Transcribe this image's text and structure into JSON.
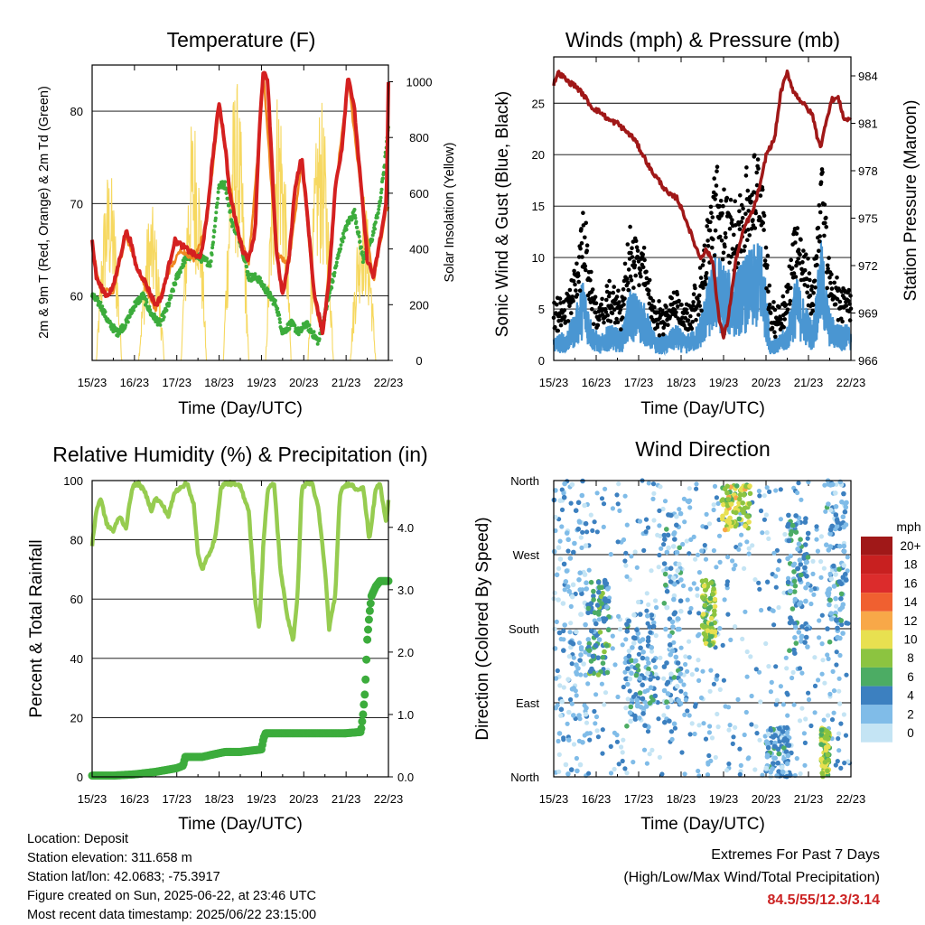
{
  "info": {
    "location": "Location: Deposit",
    "elevation": "Station elevation: 311.658 m",
    "latlon": "Station lat/lon: 42.0683; -75.3917",
    "created": "Figure created on Sun, 2025-06-22, at 23:46 UTC",
    "latest": "Most recent data timestamp: 2025/06/22 23:15:00"
  },
  "extremes": {
    "title": "Extremes For Past 7 Days",
    "subtitle": "(High/Low/Max Wind/Total Precipitation)",
    "values": "84.5/55/12.3/3.14",
    "color": "#cc2222"
  },
  "chart_data": [
    {
      "type": "line",
      "title": "Temperature (F)",
      "xlabel": "Time (Day/UTC)",
      "ylabel": "2m & 9m T (Red, Orange) & 2m Td (Green)",
      "y2label": "Solar Insolation (Yellow)",
      "x_ticks": [
        "15/23",
        "16/23",
        "17/23",
        "18/23",
        "19/23",
        "20/23",
        "21/23",
        "22/23"
      ],
      "xlim": [
        0,
        7
      ],
      "ylim": [
        53,
        85
      ],
      "y_ticks": [
        60,
        70,
        80
      ],
      "y2lim": [
        0,
        1060
      ],
      "y2_ticks": [
        0,
        200,
        400,
        600,
        800,
        1000
      ],
      "grid_y": [
        60,
        70,
        80
      ],
      "series": [
        {
          "name": "2m T",
          "color": "#d42020",
          "x": [
            0,
            0.1,
            0.2,
            0.35,
            0.5,
            0.65,
            0.8,
            0.9,
            1.05,
            1.2,
            1.35,
            1.5,
            1.65,
            1.8,
            1.95,
            2.1,
            2.25,
            2.4,
            2.55,
            2.7,
            2.85,
            3.0,
            3.15,
            3.25,
            3.4,
            3.55,
            3.7,
            3.85,
            3.95,
            4.05,
            4.15,
            4.35,
            4.5,
            4.65,
            4.8,
            4.95,
            5.1,
            5.25,
            5.35,
            5.45,
            5.6,
            5.75,
            5.9,
            6.05,
            6.2,
            6.35,
            6.5,
            6.65,
            6.8,
            6.95,
            7.0
          ],
          "y": [
            66,
            62,
            61,
            60,
            61,
            64,
            67,
            66,
            63,
            62,
            60.5,
            59,
            60,
            63,
            66,
            65.5,
            65,
            64.5,
            64,
            68,
            75,
            81,
            76,
            71,
            68,
            65,
            64,
            67,
            78,
            84.5,
            83,
            65,
            60,
            64,
            72,
            75,
            68,
            60,
            58,
            56,
            62,
            72,
            76,
            84,
            80,
            72,
            64,
            62,
            66,
            70,
            83
          ]
        },
        {
          "name": "9m T",
          "color": "#f08820",
          "x": [
            0,
            0.2,
            0.5,
            0.8,
            1.2,
            1.5,
            1.8,
            2.1,
            2.4,
            2.7,
            3.0,
            3.15,
            3.4,
            3.7,
            3.95,
            4.05,
            4.35,
            4.65,
            4.95,
            5.25,
            5.45,
            5.75,
            6.05,
            6.35,
            6.65,
            6.95
          ],
          "y": [
            65.5,
            60.5,
            60.5,
            66.5,
            61.5,
            58.5,
            62.5,
            65,
            64,
            67.5,
            80.5,
            75.5,
            67.5,
            63.5,
            77.5,
            84,
            64.5,
            63.5,
            74.5,
            59.5,
            55.5,
            71.5,
            83.5,
            71.5,
            61.5,
            69.5
          ]
        },
        {
          "name": "2m Td",
          "color": "#3cac3c",
          "x": [
            0,
            0.2,
            0.4,
            0.6,
            0.8,
            1.0,
            1.2,
            1.4,
            1.6,
            1.8,
            2.0,
            2.2,
            2.4,
            2.6,
            2.8,
            3.0,
            3.15,
            3.3,
            3.5,
            3.7,
            3.9,
            4.05,
            4.2,
            4.35,
            4.5,
            4.7,
            4.9,
            5.05,
            5.2,
            5.35,
            5.5,
            5.7,
            5.9,
            6.05,
            6.2,
            6.4,
            6.6,
            6.8,
            7.0
          ],
          "y": [
            60,
            59,
            57,
            56,
            57,
            59,
            60,
            58,
            57,
            59,
            62,
            64,
            64.5,
            64,
            63.5,
            72,
            72,
            68,
            66,
            62,
            62,
            61,
            60,
            59,
            56,
            57,
            56,
            57,
            56,
            55,
            58,
            62,
            66,
            68,
            69,
            64,
            66,
            70,
            78
          ]
        },
        {
          "name": "Solar Insolation",
          "color": "#f6d860",
          "axis": "y2",
          "days": [
            0,
            1,
            2,
            3,
            4,
            5,
            6
          ],
          "daily_peak": [
            700,
            560,
            900,
            1020,
            1010,
            940,
            620
          ]
        }
      ]
    },
    {
      "type": "scatter",
      "title": "Winds (mph) & Pressure (mb)",
      "xlabel": "Time (Day/UTC)",
      "ylabel": "Sonic Wind & Gust (Blue, Black)",
      "y2label": "Station Pressure (Maroon)",
      "x_ticks": [
        "15/23",
        "16/23",
        "17/23",
        "18/23",
        "19/23",
        "20/23",
        "21/23",
        "22/23"
      ],
      "xlim": [
        0,
        7
      ],
      "ylim": [
        0,
        29.5
      ],
      "y_ticks": [
        0,
        5,
        10,
        15,
        20,
        25
      ],
      "y2lim": [
        966,
        985.2
      ],
      "y2_ticks": [
        966,
        969,
        972,
        975,
        978,
        981,
        984
      ],
      "grid_y": [
        5,
        10,
        15,
        20,
        25
      ],
      "wind_envelope": {
        "x": [
          0,
          0.3,
          0.5,
          0.7,
          0.9,
          1.1,
          1.3,
          1.6,
          1.8,
          2.1,
          2.4,
          2.6,
          2.9,
          3.1,
          3.4,
          3.6,
          3.8,
          4.0,
          4.2,
          4.4,
          4.6,
          4.9,
          5.1,
          5.3,
          5.5,
          5.7,
          5.9,
          6.1,
          6.3,
          6.5,
          6.7,
          7.0
        ],
        "y": [
          2,
          2.5,
          4,
          7,
          3,
          2,
          3,
          2.5,
          6,
          5,
          2,
          2,
          3,
          2,
          3,
          6,
          9,
          8,
          7,
          8,
          9,
          10,
          2,
          2,
          3,
          7,
          5,
          3,
          10,
          4,
          3,
          3
        ]
      },
      "series": [
        {
          "name": "Sonic Wind",
          "color": "#4a96d2",
          "marker": "dense points"
        },
        {
          "name": "Gust",
          "color": "#000000",
          "marker": "dot"
        },
        {
          "name": "Station Pressure",
          "color": "#a01818",
          "axis": "y2",
          "x": [
            0,
            0.1,
            0.2,
            0.35,
            0.5,
            0.7,
            0.9,
            1.1,
            1.3,
            1.5,
            1.7,
            1.9,
            2.1,
            2.3,
            2.5,
            2.7,
            2.9,
            3.1,
            3.3,
            3.45,
            3.6,
            3.75,
            3.9,
            4.0,
            4.1,
            4.2,
            4.3,
            4.5,
            4.7,
            4.9,
            5.0,
            5.1,
            5.2,
            5.35,
            5.5,
            5.65,
            5.8,
            5.95,
            6.1,
            6.2,
            6.3,
            6.4,
            6.55,
            6.7,
            6.85,
            7.0
          ],
          "y": [
            983.5,
            984.2,
            984.0,
            983.6,
            983.4,
            982.8,
            982.0,
            981.7,
            981.2,
            981.0,
            980.5,
            980.0,
            979.0,
            978.0,
            977.3,
            976.5,
            976.3,
            975.0,
            973.5,
            972.5,
            973.0,
            972.2,
            968.5,
            967.5,
            968.5,
            970.5,
            972.5,
            974.5,
            975.5,
            977.5,
            979.0,
            979.5,
            980.0,
            983.0,
            984.2,
            983.0,
            982.5,
            982.0,
            981.5,
            980.2,
            979.5,
            981.0,
            982.5,
            982.6,
            981.2,
            981.3
          ]
        }
      ]
    },
    {
      "type": "line",
      "title": "Relative Humidity (%) & Precipitation (in)",
      "xlabel": "Time (Day/UTC)",
      "ylabel": "Percent & Total Rainfall",
      "x_ticks": [
        "15/23",
        "16/23",
        "17/23",
        "18/23",
        "19/23",
        "20/23",
        "21/23",
        "22/23"
      ],
      "xlim": [
        0,
        7
      ],
      "ylim": [
        0,
        100
      ],
      "y_ticks": [
        0,
        20,
        40,
        60,
        80,
        100
      ],
      "y2lim": [
        0,
        4.75
      ],
      "y2_ticks": [
        "0.0",
        "1.0",
        "2.0",
        "3.0",
        "4.0"
      ],
      "grid_y": [
        20,
        40,
        60,
        80,
        100
      ],
      "series": [
        {
          "name": "Relative Humidity",
          "color": "#96cc50",
          "x": [
            0,
            0.1,
            0.2,
            0.35,
            0.5,
            0.65,
            0.8,
            0.95,
            1.1,
            1.25,
            1.4,
            1.5,
            1.65,
            1.8,
            1.95,
            2.1,
            2.25,
            2.4,
            2.5,
            2.6,
            2.75,
            2.9,
            3.05,
            3.15,
            3.3,
            3.5,
            3.7,
            3.85,
            3.95,
            4.05,
            4.15,
            4.3,
            4.45,
            4.6,
            4.75,
            4.85,
            4.95,
            5.05,
            5.2,
            5.35,
            5.5,
            5.6,
            5.75,
            5.85,
            5.95,
            6.1,
            6.25,
            6.4,
            6.55,
            6.7,
            6.8,
            6.95,
            7.0
          ],
          "y": [
            78,
            90,
            94,
            85,
            83,
            88,
            84,
            98,
            99,
            96,
            90,
            94,
            92,
            88,
            96,
            98,
            99,
            92,
            75,
            70,
            75,
            80,
            98,
            99,
            99,
            98,
            90,
            60,
            50,
            80,
            97,
            99,
            70,
            55,
            46,
            60,
            97,
            99,
            99,
            90,
            70,
            50,
            62,
            95,
            98,
            99,
            97,
            98,
            80,
            97,
            99,
            85,
            94
          ]
        },
        {
          "name": "Total Rainfall",
          "color": "#3cac3c",
          "axis": "y2",
          "x": [
            0,
            0.5,
            1.0,
            1.5,
            2.0,
            2.15,
            2.2,
            2.6,
            3.0,
            3.15,
            3.5,
            4.0,
            4.05,
            4.1,
            5.0,
            5.5,
            6.0,
            6.35,
            6.4,
            6.45,
            6.5,
            6.55,
            6.6,
            6.7,
            6.8,
            7.0
          ],
          "y": [
            0.02,
            0.02,
            0.04,
            0.08,
            0.14,
            0.18,
            0.32,
            0.32,
            0.38,
            0.4,
            0.4,
            0.44,
            0.62,
            0.7,
            0.7,
            0.7,
            0.7,
            0.72,
            1.0,
            1.4,
            2.2,
            2.6,
            2.9,
            3.05,
            3.14,
            3.14
          ]
        }
      ]
    },
    {
      "type": "scatter",
      "title": "Wind Direction",
      "xlabel": "Time (Day/UTC)",
      "ylabel": "Direction (Colored By Speed)",
      "x_ticks": [
        "15/23",
        "16/23",
        "17/23",
        "18/23",
        "19/23",
        "20/23",
        "21/23",
        "22/23"
      ],
      "xlim": [
        0,
        7
      ],
      "y_ticks": [
        "North",
        "East",
        "South",
        "West",
        "North"
      ],
      "ylim": [
        0,
        360
      ],
      "legend": {
        "title": "mph",
        "labels": [
          "20+",
          "18",
          "16",
          "14",
          "12",
          "10",
          "8",
          "6",
          "4",
          "2",
          "0"
        ],
        "colors": [
          "#a01818",
          "#c82020",
          "#dc2c2c",
          "#f06030",
          "#f8a848",
          "#e8e050",
          "#8cc440",
          "#4cac64",
          "#3c80c0",
          "#80bce8",
          "#c4e4f4"
        ],
        "placement": "right"
      },
      "clusters": [
        {
          "x": [
            0.0,
            0.8
          ],
          "dir": [
            0,
            360
          ],
          "speed": 2
        },
        {
          "x": [
            0.8,
            1.3
          ],
          "dir": [
            120,
            240
          ],
          "speed": 5
        },
        {
          "x": [
            1.7,
            2.4
          ],
          "dir": [
            60,
            200
          ],
          "speed": 3
        },
        {
          "x": [
            2.6,
            3.0
          ],
          "dir": [
            60,
            320
          ],
          "speed": 3
        },
        {
          "x": [
            3.5,
            3.8
          ],
          "dir": [
            160,
            240
          ],
          "speed": 8
        },
        {
          "x": [
            3.95,
            4.65
          ],
          "dir": [
            300,
            355
          ],
          "speed": 9
        },
        {
          "x": [
            5.0,
            5.6
          ],
          "dir": [
            0,
            60
          ],
          "speed": 3
        },
        {
          "x": [
            5.5,
            6.0
          ],
          "dir": [
            150,
            320
          ],
          "speed": 4
        },
        {
          "x": [
            6.3,
            6.5
          ],
          "dir": [
            0,
            60
          ],
          "speed": 8
        },
        {
          "x": [
            6.4,
            6.9
          ],
          "dir": [
            160,
            360
          ],
          "speed": 3
        }
      ]
    }
  ]
}
